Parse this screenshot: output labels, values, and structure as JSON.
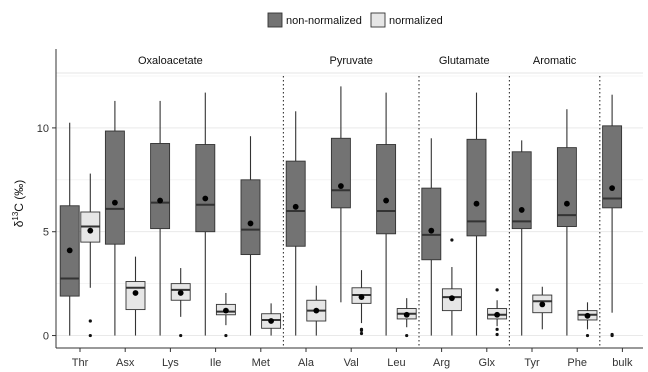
{
  "chart_data": {
    "type": "boxplot",
    "ylabel": "δ13C (‰)",
    "ylim": [
      -0.6,
      13.8
    ],
    "yticks": [
      0,
      5,
      10
    ],
    "legend": {
      "position": "top",
      "entries": [
        {
          "label": "non-normalized",
          "color": "#737373"
        },
        {
          "label": "normalized",
          "color": "#e6e6e6"
        }
      ]
    },
    "groups": [
      {
        "label": "Oxaloacetate",
        "categories": [
          "Thr",
          "Asx",
          "Lys",
          "Ile",
          "Met"
        ]
      },
      {
        "label": "Pyruvate",
        "categories": [
          "Ala",
          "Val",
          "Leu"
        ]
      },
      {
        "label": "Glutamate",
        "categories": [
          "Arg",
          "Glx"
        ]
      },
      {
        "label": "Aromatic",
        "categories": [
          "Tyr",
          "Phe"
        ]
      },
      {
        "label": "",
        "categories": [
          "bulk"
        ]
      }
    ],
    "categories": [
      "Thr",
      "Asx",
      "Lys",
      "Ile",
      "Met",
      "Ala",
      "Val",
      "Leu",
      "Arg",
      "Glx",
      "Tyr",
      "Phe",
      "bulk"
    ],
    "series": [
      {
        "name": "non-normalized",
        "color": "#737373",
        "boxes": [
          {
            "category": "Thr",
            "whisker_low": 0.0,
            "q1": 1.9,
            "median": 2.75,
            "q3": 6.25,
            "whisker_high": 10.25,
            "mean": 4.1,
            "outliers": []
          },
          {
            "category": "Asx",
            "whisker_low": 0.0,
            "q1": 4.4,
            "median": 6.1,
            "q3": 9.85,
            "whisker_high": 11.3,
            "mean": 6.4,
            "outliers": []
          },
          {
            "category": "Lys",
            "whisker_low": 0.0,
            "q1": 5.15,
            "median": 6.4,
            "q3": 9.25,
            "whisker_high": 11.3,
            "mean": 6.5,
            "outliers": []
          },
          {
            "category": "Ile",
            "whisker_low": 0.0,
            "q1": 5.0,
            "median": 6.3,
            "q3": 9.2,
            "whisker_high": 11.7,
            "mean": 6.6,
            "outliers": []
          },
          {
            "category": "Met",
            "whisker_low": 0.0,
            "q1": 3.9,
            "median": 5.1,
            "q3": 7.5,
            "whisker_high": 9.6,
            "mean": 5.4,
            "outliers": []
          },
          {
            "category": "Ala",
            "whisker_low": 0.0,
            "q1": 4.3,
            "median": 6.0,
            "q3": 8.4,
            "whisker_high": 10.8,
            "mean": 6.2,
            "outliers": []
          },
          {
            "category": "Val",
            "whisker_low": 1.6,
            "q1": 6.15,
            "median": 7.0,
            "q3": 9.5,
            "whisker_high": 12.0,
            "mean": 7.2,
            "outliers": []
          },
          {
            "category": "Leu",
            "whisker_low": 0.0,
            "q1": 4.9,
            "median": 6.0,
            "q3": 9.2,
            "whisker_high": 11.7,
            "mean": 6.5,
            "outliers": []
          },
          {
            "category": "Arg",
            "whisker_low": 0.0,
            "q1": 3.65,
            "median": 4.85,
            "q3": 7.1,
            "whisker_high": 9.5,
            "mean": 5.05,
            "outliers": []
          },
          {
            "category": "Glx",
            "whisker_low": 0.0,
            "q1": 4.8,
            "median": 5.5,
            "q3": 9.45,
            "whisker_high": 11.7,
            "mean": 6.35,
            "outliers": []
          },
          {
            "category": "Tyr",
            "whisker_low": 0.0,
            "q1": 5.15,
            "median": 5.5,
            "q3": 8.85,
            "whisker_high": 9.4,
            "mean": 6.05,
            "outliers": []
          },
          {
            "category": "Phe",
            "whisker_low": 0.0,
            "q1": 5.25,
            "median": 5.8,
            "q3": 9.05,
            "whisker_high": 10.9,
            "mean": 6.35,
            "outliers": []
          },
          {
            "category": "bulk",
            "whisker_low": 1.1,
            "q1": 6.15,
            "median": 6.6,
            "q3": 10.1,
            "whisker_high": 11.6,
            "mean": 7.1,
            "outliers": [
              0.0,
              0.05
            ]
          }
        ]
      },
      {
        "name": "normalized",
        "color": "#e6e6e6",
        "boxes": [
          {
            "category": "Thr",
            "whisker_low": 2.3,
            "q1": 4.5,
            "median": 5.25,
            "q3": 5.95,
            "whisker_high": 7.8,
            "mean": 5.05,
            "outliers": [
              0.7,
              0.0
            ]
          },
          {
            "category": "Asx",
            "whisker_low": 0.0,
            "q1": 1.25,
            "median": 2.3,
            "q3": 2.6,
            "whisker_high": 3.8,
            "mean": 2.05,
            "outliers": []
          },
          {
            "category": "Lys",
            "whisker_low": 0.9,
            "q1": 1.7,
            "median": 2.2,
            "q3": 2.5,
            "whisker_high": 3.25,
            "mean": 2.05,
            "outliers": [
              0.0
            ]
          },
          {
            "category": "Ile",
            "whisker_low": 0.5,
            "q1": 1.0,
            "median": 1.15,
            "q3": 1.5,
            "whisker_high": 2.05,
            "mean": 1.2,
            "outliers": [
              0.0
            ]
          },
          {
            "category": "Met",
            "whisker_low": 0.0,
            "q1": 0.35,
            "median": 0.75,
            "q3": 1.05,
            "whisker_high": 1.55,
            "mean": 0.7,
            "outliers": []
          },
          {
            "category": "Ala",
            "whisker_low": 0.0,
            "q1": 0.7,
            "median": 1.2,
            "q3": 1.7,
            "whisker_high": 2.4,
            "mean": 1.2,
            "outliers": []
          },
          {
            "category": "Val",
            "whisker_low": 0.6,
            "q1": 1.55,
            "median": 1.95,
            "q3": 2.3,
            "whisker_high": 3.15,
            "mean": 1.85,
            "outliers": [
              0.25,
              0.1,
              0.3
            ]
          },
          {
            "category": "Leu",
            "whisker_low": 0.4,
            "q1": 0.8,
            "median": 1.05,
            "q3": 1.3,
            "whisker_high": 1.8,
            "mean": 1.0,
            "outliers": [
              0.0
            ]
          },
          {
            "category": "Arg",
            "whisker_low": 0.0,
            "q1": 1.2,
            "median": 1.85,
            "q3": 2.25,
            "whisker_high": 3.3,
            "mean": 1.8,
            "outliers": [
              4.6
            ]
          },
          {
            "category": "Glx",
            "whisker_low": 0.45,
            "q1": 0.8,
            "median": 1.0,
            "q3": 1.3,
            "whisker_high": 1.7,
            "mean": 1.0,
            "outliers": [
              2.2,
              0.3,
              0.05
            ]
          },
          {
            "category": "Tyr",
            "whisker_low": 0.3,
            "q1": 1.1,
            "median": 1.65,
            "q3": 1.95,
            "whisker_high": 2.35,
            "mean": 1.5,
            "outliers": []
          },
          {
            "category": "Phe",
            "whisker_low": 0.3,
            "q1": 0.75,
            "median": 1.0,
            "q3": 1.2,
            "whisker_high": 1.6,
            "mean": 0.95,
            "outliers": [
              0.0
            ]
          }
        ]
      }
    ]
  }
}
